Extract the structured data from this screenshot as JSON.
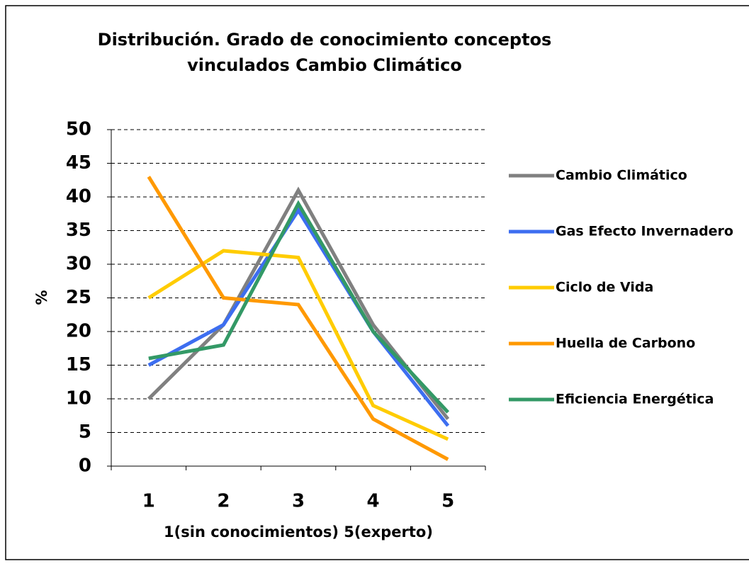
{
  "chart_data": {
    "type": "line",
    "title": "Distribución. Grado de conocimiento conceptos vinculados Cambio Climático",
    "xlabel": "1(sin conocimientos) 5(experto)",
    "ylabel": "%",
    "categories": [
      "1",
      "2",
      "3",
      "4",
      "5"
    ],
    "series": [
      {
        "name": "Cambio Climático",
        "color": "#808080",
        "values": [
          10,
          21,
          41,
          21,
          7
        ]
      },
      {
        "name": "Gas Efecto Invernadero",
        "color": "#3d6ef0",
        "values": [
          15,
          21,
          38,
          20,
          6
        ]
      },
      {
        "name": "Ciclo de Vida",
        "color": "#ffcc00",
        "values": [
          25,
          32,
          31,
          9,
          4
        ]
      },
      {
        "name": "Huella de Carbono",
        "color": "#ff9900",
        "values": [
          43,
          25,
          24,
          7,
          1
        ]
      },
      {
        "name": "Eficiencia Energética",
        "color": "#339966",
        "values": [
          16,
          18,
          39,
          20,
          8
        ]
      }
    ],
    "ylim": [
      0,
      50
    ],
    "yticks": [
      0,
      5,
      10,
      15,
      20,
      25,
      30,
      35,
      40,
      45,
      50
    ],
    "grid": true,
    "legend": "right"
  }
}
